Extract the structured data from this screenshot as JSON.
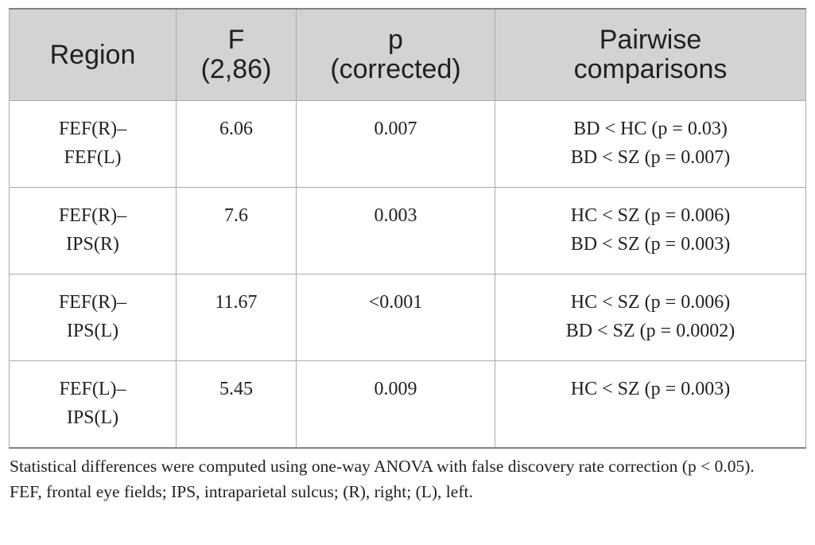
{
  "table": {
    "headers": [
      {
        "lines": [
          "Region"
        ]
      },
      {
        "lines": [
          "F",
          "(2,86)"
        ]
      },
      {
        "lines": [
          "p",
          "(corrected)"
        ]
      },
      {
        "lines": [
          "Pairwise",
          "comparisons"
        ]
      }
    ],
    "rows": [
      {
        "region": [
          "FEF(R)–",
          "FEF(L)"
        ],
        "f": "6.06",
        "p": "0.007",
        "comparisons": [
          "BD < HC (p = 0.03)",
          "BD < SZ (p = 0.007)"
        ]
      },
      {
        "region": [
          "FEF(R)–",
          "IPS(R)"
        ],
        "f": "7.6",
        "p": "0.003",
        "comparisons": [
          "HC < SZ (p = 0.006)",
          "BD < SZ (p = 0.003)"
        ]
      },
      {
        "region": [
          "FEF(R)–",
          "IPS(L)"
        ],
        "f": "11.67",
        "p": "<0.001",
        "comparisons": [
          "HC < SZ (p = 0.006)",
          "BD < SZ (p = 0.0002)"
        ]
      },
      {
        "region": [
          "FEF(L)–",
          "IPS(L)"
        ],
        "f": "5.45",
        "p": "0.009",
        "comparisons": [
          "HC < SZ (p = 0.003)"
        ]
      }
    ]
  },
  "notes": {
    "method": "Statistical differences were computed using one-way ANOVA with false discovery rate correction (p < 0.05).",
    "abbreviations": "FEF, frontal eye fields; IPS, intraparietal sulcus; (R), right; (L), left."
  }
}
